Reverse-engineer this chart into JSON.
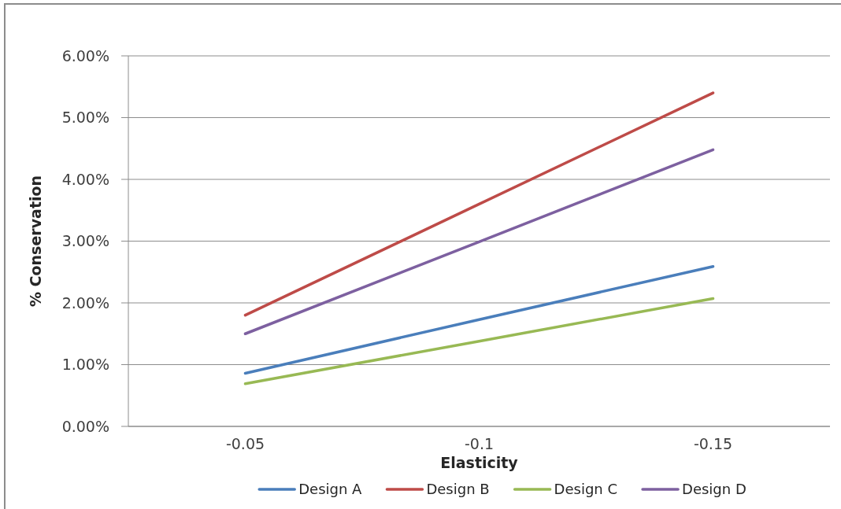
{
  "chart_data": {
    "type": "line",
    "xlabel": "Elasticity",
    "ylabel": "% Conservation",
    "categories": [
      "-0.05",
      "-0.1",
      "-0.15"
    ],
    "series": [
      {
        "name": "Design A",
        "color": "#4a7ebb",
        "values": [
          0.86,
          1.73,
          2.59
        ]
      },
      {
        "name": "Design B",
        "color": "#be4b48",
        "values": [
          1.8,
          3.6,
          5.4
        ]
      },
      {
        "name": "Design C",
        "color": "#98b954",
        "values": [
          0.69,
          1.38,
          2.07
        ]
      },
      {
        "name": "Design D",
        "color": "#7d60a0",
        "values": [
          1.5,
          2.99,
          4.48
        ]
      }
    ],
    "ylim": [
      0,
      6
    ],
    "yticks": [
      {
        "value": 0,
        "label": "0.00%"
      },
      {
        "value": 1,
        "label": "1.00%"
      },
      {
        "value": 2,
        "label": "2.00%"
      },
      {
        "value": 3,
        "label": "3.00%"
      },
      {
        "value": 4,
        "label": "4.00%"
      },
      {
        "value": 5,
        "label": "5.00%"
      },
      {
        "value": 6,
        "label": "6.00%"
      }
    ],
    "grid": "y",
    "legend": "bottom",
    "marker": "none",
    "line_style": "solid"
  }
}
